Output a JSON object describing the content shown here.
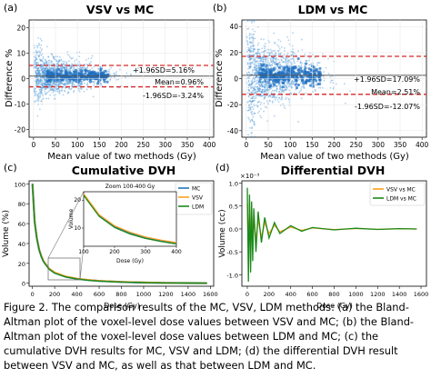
{
  "caption": "Figure 2. The comparison results of the MC, VSV, LDM methods: (a) the Bland-Altman plot of the voxel-level dose values between VSV and MC; (b) the Bland-Altman plot of the voxel-level dose values between LDM and MC; (c) the cumulative DVH results for MC, VSV and LDM; (d) the differential DVH result between VSV and MC, as well as that between LDM and MC.",
  "colors": {
    "scatter": "#4f9ad8",
    "limit": "#d62728",
    "mean": "#555555",
    "mc": "#1f77b4",
    "vsv": "#ff9f1c",
    "ldm": "#1a8a1a"
  },
  "chart_data": [
    {
      "panel_label": "(a)",
      "type": "scatter",
      "title": "VSV vs MC",
      "xlabel": "Mean value of two methods (Gy)",
      "ylabel": "Difference %",
      "xlim": [
        -10,
        410
      ],
      "ylim": [
        -23,
        23
      ],
      "xticks": [
        "0",
        "50",
        "100",
        "150",
        "200",
        "250",
        "300",
        "350",
        "400"
      ],
      "yticks": [
        "-20",
        "-10",
        "0",
        "10",
        "20"
      ],
      "mean": 0.96,
      "upper_loa": 5.16,
      "lower_loa": -3.24,
      "annotations": {
        "upper": "+1.96SD=5.16%",
        "mean": "Mean=0.96%",
        "lower": "-1.96SD=-3.24%"
      },
      "grid": true
    },
    {
      "panel_label": "(b)",
      "type": "scatter",
      "title": "LDM vs MC",
      "xlabel": "Mean value of two methods (Gy)",
      "ylabel": "Difference %",
      "xlim": [
        -10,
        410
      ],
      "ylim": [
        -45,
        45
      ],
      "xticks": [
        "0",
        "50",
        "100",
        "150",
        "200",
        "250",
        "300",
        "350",
        "400"
      ],
      "yticks": [
        "-40",
        "-20",
        "0",
        "20",
        "40"
      ],
      "mean": 2.51,
      "upper_loa": 17.09,
      "lower_loa": -12.07,
      "annotations": {
        "upper": "+1.96SD=17.09%",
        "mean": "Mean=2.51%",
        "lower": "-1.96SD=-12.07%"
      },
      "grid": true
    },
    {
      "panel_label": "(c)",
      "type": "line",
      "title": "Cumulative DVH",
      "xlabel": "Dose (Gy)",
      "ylabel": "Volume (%)",
      "xlim": [
        -30,
        1630
      ],
      "ylim": [
        -3,
        103
      ],
      "xticks": [
        "0",
        "200",
        "400",
        "600",
        "800",
        "1000",
        "1200",
        "1400",
        "1600"
      ],
      "yticks": [
        "0",
        "20",
        "40",
        "60",
        "80",
        "100"
      ],
      "legend": [
        "MC",
        "VSV",
        "LDM"
      ],
      "legend_loc": "top-right",
      "x": [
        0,
        20,
        40,
        60,
        80,
        100,
        150,
        200,
        300,
        400,
        500,
        600,
        800,
        1000,
        1200,
        1400,
        1570
      ],
      "series": [
        {
          "name": "MC",
          "values": [
            100,
            62,
            45,
            34,
            27,
            22,
            14.5,
            10.5,
            6.5,
            4.5,
            3.2,
            2.3,
            1.3,
            0.7,
            0.4,
            0.2,
            0.1
          ]
        },
        {
          "name": "VSV",
          "values": [
            100,
            62.4,
            45.4,
            34.3,
            27.3,
            22.3,
            14.8,
            10.8,
            6.8,
            4.8,
            3.4,
            2.5,
            1.4,
            0.8,
            0.4,
            0.2,
            0.1
          ]
        },
        {
          "name": "LDM",
          "values": [
            100,
            61.6,
            44.6,
            33.7,
            26.7,
            21.7,
            14.2,
            10.2,
            6.3,
            4.3,
            3.0,
            2.2,
            1.2,
            0.7,
            0.3,
            0.2,
            0.1
          ]
        }
      ],
      "inset": {
        "title": "Zoom 100-400 Gy",
        "xlabel": "Dose (Gy)",
        "ylabel": "Volume",
        "xlim": [
          100,
          400
        ],
        "ylim": [
          3.5,
          23
        ],
        "xticks": [
          "100",
          "200",
          "300",
          "400"
        ],
        "yticks": [
          "10",
          "20"
        ],
        "x": [
          100,
          150,
          200,
          250,
          300,
          350,
          400
        ],
        "series": [
          {
            "name": "MC",
            "values": [
              22,
              14.5,
              10.5,
              8.2,
              6.5,
              5.4,
              4.5
            ]
          },
          {
            "name": "VSV",
            "values": [
              22.3,
              14.8,
              10.8,
              8.5,
              6.8,
              5.7,
              4.8
            ]
          },
          {
            "name": "LDM",
            "values": [
              21.7,
              14.2,
              10.2,
              7.9,
              6.3,
              5.2,
              4.3
            ]
          }
        ]
      }
    },
    {
      "panel_label": "(d)",
      "type": "line",
      "title": "Differential DVH",
      "xlabel": "Dose (Gy)",
      "ylabel": "Volume (cc)",
      "offset_label": "×10⁻³",
      "xlim": [
        -50,
        1650
      ],
      "ylim": [
        -1.25,
        1.05
      ],
      "xticks": [
        "0",
        "200",
        "400",
        "600",
        "800",
        "1000",
        "1200",
        "1400",
        "1600"
      ],
      "yticks": [
        "-1.0",
        "-0.5",
        "0.0",
        "0.5",
        "1.0"
      ],
      "legend": [
        "VSV vs MC",
        "LDM vs MC"
      ],
      "legend_loc": "top-right",
      "x": [
        0,
        10,
        20,
        30,
        40,
        50,
        60,
        80,
        100,
        130,
        160,
        200,
        250,
        300,
        400,
        500,
        600,
        800,
        1000,
        1200,
        1400,
        1560
      ],
      "series": [
        {
          "name": "VSV vs MC",
          "values": [
            0.55,
            -0.5,
            0.6,
            -0.45,
            0.4,
            -0.3,
            0.3,
            -0.25,
            0.2,
            -0.18,
            0.14,
            -0.1,
            0.08,
            -0.06,
            0.04,
            -0.03,
            0.02,
            -0.015,
            0.01,
            -0.008,
            0.005,
            0.0
          ]
        },
        {
          "name": "LDM vs MC",
          "values": [
            0.9,
            -1.15,
            0.75,
            -0.95,
            0.6,
            -0.7,
            0.45,
            -0.5,
            0.38,
            -0.3,
            0.25,
            -0.2,
            0.14,
            -0.1,
            0.07,
            -0.05,
            0.03,
            -0.02,
            0.015,
            -0.01,
            0.008,
            0.0
          ]
        }
      ]
    }
  ]
}
